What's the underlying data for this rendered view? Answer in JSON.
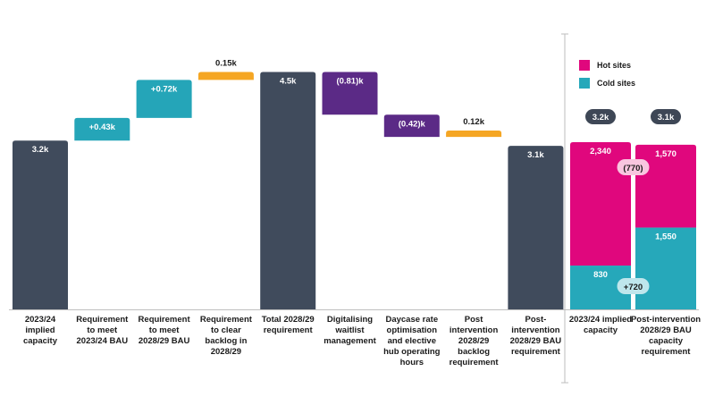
{
  "colors": {
    "slate": "#404B5C",
    "teal": "#25A5B8",
    "orange": "#F5A623",
    "purple": "#5B2A86",
    "hot": "#E0077D",
    "cold": "#26A8BA",
    "pill": "#3E4756"
  },
  "legend": [
    {
      "label": "Hot sites",
      "color": "#E0077D"
    },
    {
      "label": "Cold sites",
      "color": "#26A8BA"
    }
  ],
  "chart_data": [
    {
      "type": "waterfall",
      "unit": "k",
      "ylim": [
        0,
        4.95
      ],
      "categories": [
        "2023/24 implied capacity",
        "Requirement to meet 2023/24 BAU",
        "Requirement to meet 2028/29 BAU",
        "Requirement to clear backlog in 2028/29",
        "Total 2028/29 requirement",
        "Digitalising waitlist management",
        "Daycase rate optimisation and elective hub operating hours",
        "Post intervention 2028/29 backlog requirement",
        "Post-intervention 2028/29 BAU requirement"
      ],
      "steps": [
        {
          "kind": "total",
          "value": 3.2,
          "label": "3.2k",
          "color": "slate"
        },
        {
          "kind": "delta",
          "value": 0.43,
          "label": "+0.43k",
          "color": "teal"
        },
        {
          "kind": "delta",
          "value": 0.72,
          "label": "+0.72k",
          "color": "teal"
        },
        {
          "kind": "delta",
          "value": 0.15,
          "label": "0.15k",
          "color": "orange"
        },
        {
          "kind": "total",
          "value": 4.5,
          "label": "4.5k",
          "color": "slate"
        },
        {
          "kind": "delta",
          "value": -0.81,
          "label": "(0.81)k",
          "color": "purple"
        },
        {
          "kind": "delta",
          "value": -0.42,
          "label": "(0.42)k",
          "color": "purple"
        },
        {
          "kind": "delta",
          "value": 0.12,
          "label": "0.12k",
          "color": "orange"
        },
        {
          "kind": "total",
          "value": 3.1,
          "label": "3.1k",
          "color": "slate"
        }
      ]
    },
    {
      "type": "stacked_bar",
      "categories": [
        "2023/24 implied capacity",
        "Post-intervention 2028/29 BAU capacity requirement"
      ],
      "totals": [
        "3.2k",
        "3.1k"
      ],
      "series": [
        {
          "name": "Cold sites",
          "values": [
            830,
            1550
          ],
          "labels": [
            "830",
            "1,550"
          ]
        },
        {
          "name": "Hot sites",
          "values": [
            2340,
            1570
          ],
          "labels": [
            "2,340",
            "1,570"
          ]
        }
      ],
      "changes": [
        {
          "series": "Hot sites",
          "label": "(770)"
        },
        {
          "series": "Cold sites",
          "label": "+720"
        }
      ]
    }
  ]
}
